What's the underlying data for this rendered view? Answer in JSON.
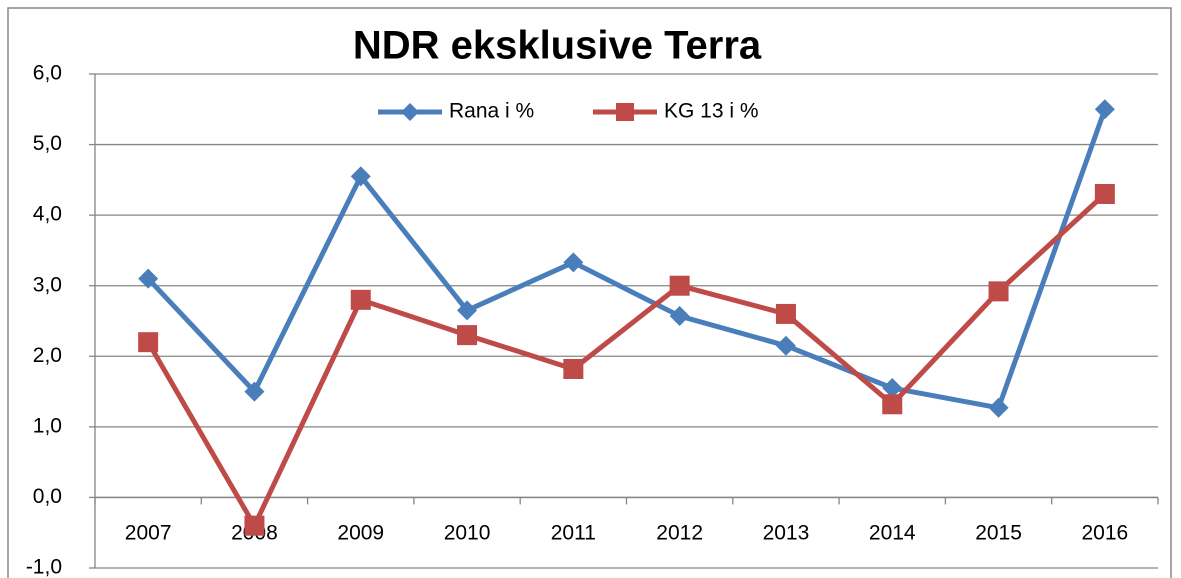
{
  "chart_data": {
    "type": "line",
    "title": "NDR eksklusive Terra",
    "categories": [
      "2007",
      "2008",
      "2009",
      "2010",
      "2011",
      "2012",
      "2013",
      "2014",
      "2015",
      "2016"
    ],
    "series": [
      {
        "name": "Rana i %",
        "color": "#4a7ebb",
        "marker": "diamond",
        "values": [
          3.1,
          1.5,
          4.55,
          2.65,
          3.33,
          2.57,
          2.15,
          1.55,
          1.27,
          5.5
        ]
      },
      {
        "name": "KG 13 i %",
        "color": "#be4b48",
        "marker": "square",
        "values": [
          2.2,
          -0.4,
          2.8,
          2.3,
          1.82,
          3.0,
          2.6,
          1.32,
          2.92,
          4.3
        ]
      }
    ],
    "ylim": [
      -1,
      6
    ],
    "yticks": [
      {
        "value": -1,
        "label": "-1,0"
      },
      {
        "value": 0,
        "label": "0,0"
      },
      {
        "value": 1,
        "label": "1,0"
      },
      {
        "value": 2,
        "label": "2,0"
      },
      {
        "value": 3,
        "label": "3,0"
      },
      {
        "value": 4,
        "label": "4,0"
      },
      {
        "value": 5,
        "label": "5,0"
      },
      {
        "value": 6,
        "label": "6,0"
      }
    ],
    "grid": true,
    "legend": "top"
  }
}
